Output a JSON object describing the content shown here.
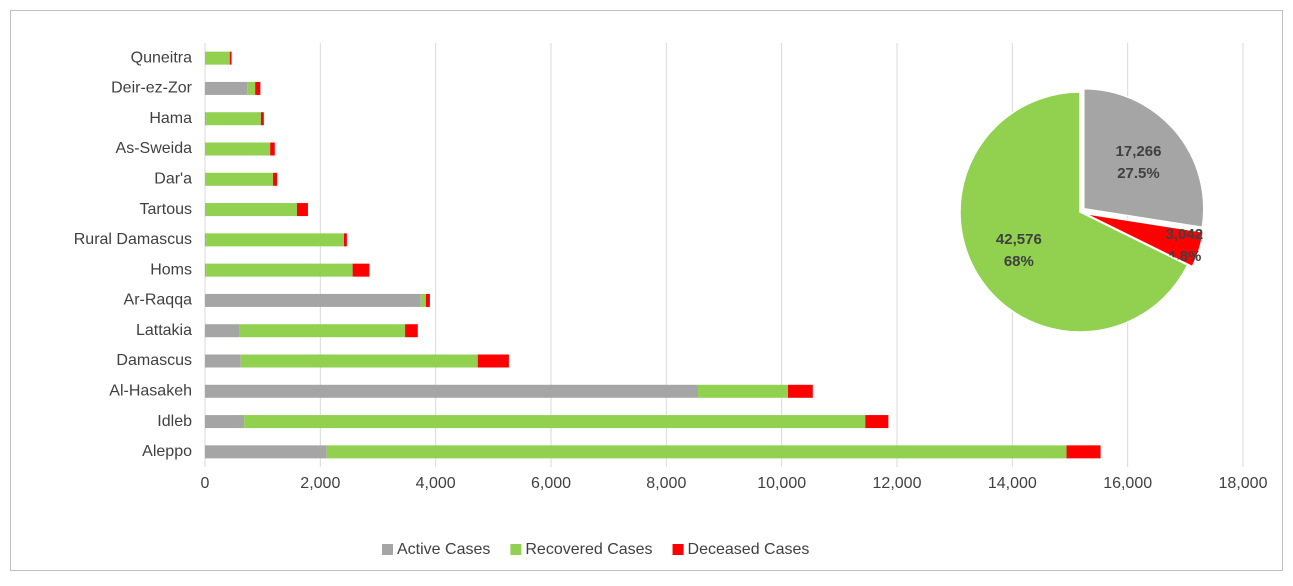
{
  "chart_data": [
    {
      "type": "stacked-bar",
      "categories": [
        "Quneitra",
        "Deir-ez-Zor",
        "Hama",
        "As-Sweida",
        "Dar'a",
        "Tartous",
        "Rural Damascus",
        "Homs",
        "Ar-Raqqa",
        "Lattakia",
        "Damascus",
        "Al-Hasakeh",
        "Idleb",
        "Aleppo"
      ],
      "series": [
        {
          "name": "Active Cases",
          "color": "#a5a5a5",
          "values": [
            10,
            730,
            20,
            10,
            10,
            15,
            20,
            20,
            3740,
            590,
            620,
            8550,
            680,
            2110
          ]
        },
        {
          "name": "Recovered Cases",
          "color": "#92d050",
          "values": [
            420,
            140,
            950,
            1120,
            1170,
            1580,
            2390,
            2540,
            90,
            2880,
            4110,
            1560,
            10770,
            12830
          ]
        },
        {
          "name": "Deceased Cases",
          "color": "#ff0000",
          "values": [
            30,
            90,
            50,
            80,
            70,
            190,
            50,
            290,
            70,
            220,
            540,
            430,
            400,
            590
          ]
        }
      ],
      "xlim": [
        0,
        18000
      ],
      "xticks": [
        0,
        {
          "value": 2000,
          "label": "2,000"
        },
        {
          "value": 4000,
          "label": "4,000"
        },
        {
          "value": 6000,
          "label": "6,000"
        },
        {
          "value": 8000,
          "label": "8,000"
        },
        {
          "value": 10000,
          "label": "10,000"
        },
        {
          "value": 12000,
          "label": "12,000"
        },
        {
          "value": 14000,
          "label": "14,000"
        },
        {
          "value": 16000,
          "label": "16,000"
        },
        {
          "value": 18000,
          "label": "18,000"
        }
      ],
      "grid": true,
      "legend": "bottom"
    },
    {
      "type": "pie",
      "categories": [
        "Active Cases",
        "Deceased Cases",
        "Recovered Cases"
      ],
      "values": [
        17266,
        3042,
        42576
      ],
      "value_labels": [
        "17,266",
        "3,042",
        "42,576"
      ],
      "percents": [
        27.5,
        4.8,
        68
      ],
      "percent_labels": [
        "27.5%",
        "4.8%",
        "68%"
      ],
      "colors": [
        "#a5a5a5",
        "#ff0000",
        "#92d050"
      ]
    }
  ]
}
